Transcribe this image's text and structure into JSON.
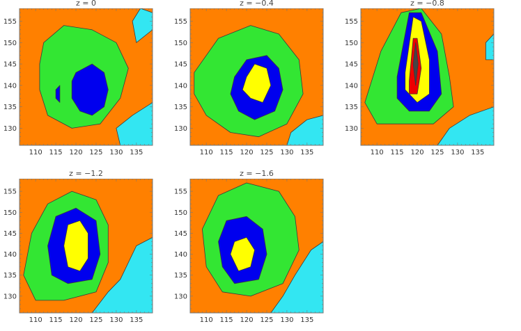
{
  "chart_data": [
    {
      "type": "contour",
      "title": "z = 0",
      "xlabel": "",
      "ylabel": "",
      "xticks": [
        110,
        115,
        120,
        125,
        130,
        135
      ],
      "yticks": [
        130,
        135,
        140,
        145,
        150,
        155
      ],
      "xlim": [
        106,
        139
      ],
      "ylim": [
        126,
        158
      ],
      "levels": [
        {
          "name": "cyan",
          "color": "#33e6f2"
        },
        {
          "name": "orange",
          "color": "#ff8000"
        },
        {
          "name": "green",
          "color": "#33e633"
        },
        {
          "name": "blue",
          "color": "#0000ee"
        }
      ],
      "regions": [
        {
          "color": "cyan",
          "points": [
            [
              131,
              126
            ],
            [
              139,
              126
            ],
            [
              139,
              136
            ],
            [
              134,
              133
            ],
            [
              130,
              130
            ]
          ]
        },
        {
          "color": "cyan",
          "points": [
            [
              135,
              150
            ],
            [
              139,
              153
            ],
            [
              139,
              157
            ],
            [
              136,
              158
            ],
            [
              134,
              155
            ]
          ]
        },
        {
          "color": "green",
          "points": [
            [
              112,
              150
            ],
            [
              117,
              154
            ],
            [
              124,
              153
            ],
            [
              130,
              150
            ],
            [
              133,
              144
            ],
            [
              131,
              137
            ],
            [
              126,
              131
            ],
            [
              119,
              130
            ],
            [
              113,
              133
            ],
            [
              111,
              139
            ],
            [
              111,
              145
            ]
          ]
        },
        {
          "color": "blue",
          "points": [
            [
              120,
              143
            ],
            [
              124,
              145
            ],
            [
              127,
              143
            ],
            [
              128,
              139
            ],
            [
              127,
              135
            ],
            [
              124,
              133
            ],
            [
              121,
              134
            ],
            [
              119,
              137
            ],
            [
              119,
              141
            ]
          ]
        },
        {
          "color": "blue",
          "points": [
            [
              115,
              139
            ],
            [
              116,
              140
            ],
            [
              116,
              136
            ],
            [
              115,
              137
            ]
          ]
        }
      ]
    },
    {
      "type": "contour",
      "title": "z = −0.4",
      "xlabel": "",
      "ylabel": "",
      "xticks": [
        110,
        115,
        120,
        125,
        130,
        135
      ],
      "yticks": [
        130,
        135,
        140,
        145,
        150,
        155
      ],
      "xlim": [
        106,
        139
      ],
      "ylim": [
        126,
        158
      ],
      "levels": [
        {
          "name": "cyan",
          "color": "#33e6f2"
        },
        {
          "name": "orange",
          "color": "#ff8000"
        },
        {
          "name": "green",
          "color": "#33e633"
        },
        {
          "name": "blue",
          "color": "#0000ee"
        },
        {
          "name": "yellow",
          "color": "#ffff00"
        }
      ],
      "regions": [
        {
          "color": "cyan",
          "points": [
            [
              130,
              126
            ],
            [
              139,
              126
            ],
            [
              139,
              133
            ],
            [
              135,
              132
            ],
            [
              131,
              129
            ]
          ]
        },
        {
          "color": "green",
          "points": [
            [
              107,
              143
            ],
            [
              113,
              151
            ],
            [
              121,
              154
            ],
            [
              128,
              152
            ],
            [
              133,
              146
            ],
            [
              134,
              138
            ],
            [
              130,
              131
            ],
            [
              123,
              128
            ],
            [
              116,
              129
            ],
            [
              110,
              133
            ],
            [
              107,
              138
            ]
          ]
        },
        {
          "color": "blue",
          "points": [
            [
              117,
              142
            ],
            [
              120,
              146
            ],
            [
              125,
              147
            ],
            [
              128,
              144
            ],
            [
              129,
              139
            ],
            [
              127,
              134
            ],
            [
              122,
              132
            ],
            [
              118,
              134
            ],
            [
              116,
              138
            ]
          ]
        },
        {
          "color": "yellow",
          "points": [
            [
              120,
              142
            ],
            [
              122,
              145
            ],
            [
              125,
              144
            ],
            [
              126,
              140
            ],
            [
              124,
              136
            ],
            [
              121,
              137
            ],
            [
              119,
              139
            ]
          ]
        }
      ]
    },
    {
      "type": "contour",
      "title": "z = −0.8",
      "xlabel": "",
      "ylabel": "",
      "xticks": [
        110,
        115,
        120,
        125,
        130,
        135
      ],
      "yticks": [
        130,
        135,
        140,
        145,
        150,
        155
      ],
      "xlim": [
        106,
        139
      ],
      "ylim": [
        126,
        158
      ],
      "levels": [
        {
          "name": "cyan",
          "color": "#33e6f2"
        },
        {
          "name": "orange",
          "color": "#ff8000"
        },
        {
          "name": "green",
          "color": "#33e633"
        },
        {
          "name": "blue",
          "color": "#0000ee"
        },
        {
          "name": "yellow",
          "color": "#ffff00"
        },
        {
          "name": "red",
          "color": "#ee0000"
        },
        {
          "name": "dark",
          "color": "#444444"
        }
      ],
      "regions": [
        {
          "color": "cyan",
          "points": [
            [
              137,
              146
            ],
            [
              139,
              146
            ],
            [
              139,
              152
            ],
            [
              137,
              150
            ]
          ]
        },
        {
          "color": "cyan",
          "points": [
            [
              125,
              126
            ],
            [
              139,
              126
            ],
            [
              139,
              135
            ],
            [
              133,
              133
            ],
            [
              128,
              130
            ]
          ]
        },
        {
          "color": "green",
          "points": [
            [
              107,
              136
            ],
            [
              111,
              148
            ],
            [
              116,
              157
            ],
            [
              121,
              158
            ],
            [
              126,
              152
            ],
            [
              128,
              142
            ],
            [
              129,
              135
            ],
            [
              124,
              131
            ],
            [
              116,
              131
            ],
            [
              110,
              131
            ]
          ]
        },
        {
          "color": "blue",
          "points": [
            [
              115,
              142
            ],
            [
              118,
              157
            ],
            [
              121,
              157
            ],
            [
              125,
              148
            ],
            [
              126,
              138
            ],
            [
              123,
              134
            ],
            [
              118,
              134
            ],
            [
              115,
              137
            ]
          ]
        },
        {
          "color": "yellow",
          "points": [
            [
              117,
              143
            ],
            [
              119,
              156
            ],
            [
              121,
              155
            ],
            [
              123,
              146
            ],
            [
              123,
              138
            ],
            [
              120,
              136
            ],
            [
              117,
              139
            ]
          ]
        },
        {
          "color": "red",
          "points": [
            [
              118,
              141
            ],
            [
              119,
              151
            ],
            [
              120,
              151
            ],
            [
              121,
              144
            ],
            [
              120,
              138
            ],
            [
              118,
              138
            ]
          ]
        },
        {
          "color": "dark",
          "points": [
            [
              119,
              145
            ],
            [
              119.6,
              150
            ],
            [
              120.2,
              145
            ],
            [
              119.6,
              140
            ]
          ]
        }
      ]
    },
    {
      "type": "contour",
      "title": "z = −1.2",
      "xlabel": "",
      "ylabel": "",
      "xticks": [
        110,
        115,
        120,
        125,
        130,
        135
      ],
      "yticks": [
        130,
        135,
        140,
        145,
        150,
        155
      ],
      "xlim": [
        106,
        139
      ],
      "ylim": [
        126,
        158
      ],
      "levels": [
        {
          "name": "cyan",
          "color": "#33e6f2"
        },
        {
          "name": "orange",
          "color": "#ff8000"
        },
        {
          "name": "green",
          "color": "#33e633"
        },
        {
          "name": "blue",
          "color": "#0000ee"
        },
        {
          "name": "yellow",
          "color": "#ffff00"
        }
      ],
      "regions": [
        {
          "color": "cyan",
          "points": [
            [
              124,
              126
            ],
            [
              139,
              126
            ],
            [
              139,
              144
            ],
            [
              135,
              142
            ],
            [
              131,
              134
            ],
            [
              128,
              131
            ]
          ]
        },
        {
          "color": "green",
          "points": [
            [
              107,
              135
            ],
            [
              109,
              145
            ],
            [
              113,
              152
            ],
            [
              119,
              155
            ],
            [
              125,
              153
            ],
            [
              128,
              147
            ],
            [
              128,
              138
            ],
            [
              125,
              131
            ],
            [
              117,
              129
            ],
            [
              110,
              129
            ]
          ]
        },
        {
          "color": "blue",
          "points": [
            [
              113,
              142
            ],
            [
              115,
              149
            ],
            [
              120,
              151
            ],
            [
              125,
              148
            ],
            [
              126,
              140
            ],
            [
              124,
              134
            ],
            [
              118,
              133
            ],
            [
              114,
              135
            ]
          ]
        },
        {
          "color": "yellow",
          "points": [
            [
              117,
              142
            ],
            [
              118,
              147
            ],
            [
              121,
              148
            ],
            [
              123,
              145
            ],
            [
              123,
              139
            ],
            [
              121,
              136
            ],
            [
              118,
              137
            ]
          ]
        }
      ]
    },
    {
      "type": "contour",
      "title": "z = −1.6",
      "xlabel": "",
      "ylabel": "",
      "xticks": [
        110,
        115,
        120,
        125,
        130,
        135
      ],
      "yticks": [
        130,
        135,
        140,
        145,
        150,
        155
      ],
      "xlim": [
        106,
        139
      ],
      "ylim": [
        126,
        158
      ],
      "levels": [
        {
          "name": "cyan",
          "color": "#33e6f2"
        },
        {
          "name": "orange",
          "color": "#ff8000"
        },
        {
          "name": "green",
          "color": "#33e633"
        },
        {
          "name": "blue",
          "color": "#0000ee"
        },
        {
          "name": "yellow",
          "color": "#ffff00"
        }
      ],
      "regions": [
        {
          "color": "cyan",
          "points": [
            [
              126,
              126
            ],
            [
              139,
              126
            ],
            [
              139,
              143
            ],
            [
              136,
              141
            ],
            [
              132,
              135
            ],
            [
              129,
              130
            ]
          ]
        },
        {
          "color": "green",
          "points": [
            [
              109,
              146
            ],
            [
              113,
              154
            ],
            [
              120,
              157
            ],
            [
              128,
              155
            ],
            [
              132,
              149
            ],
            [
              133,
              141
            ],
            [
              129,
              133
            ],
            [
              121,
              130
            ],
            [
              114,
              131
            ],
            [
              110,
              137
            ]
          ]
        },
        {
          "color": "blue",
          "points": [
            [
              113,
              143
            ],
            [
              115,
              148
            ],
            [
              120,
              149
            ],
            [
              124,
              146
            ],
            [
              125,
              140
            ],
            [
              123,
              134
            ],
            [
              117,
              133
            ],
            [
              114,
              137
            ]
          ]
        },
        {
          "color": "yellow",
          "points": [
            [
              116,
              140
            ],
            [
              117,
              143
            ],
            [
              120,
              144
            ],
            [
              122,
              141
            ],
            [
              121,
              137
            ],
            [
              118,
              136
            ]
          ]
        }
      ]
    }
  ]
}
